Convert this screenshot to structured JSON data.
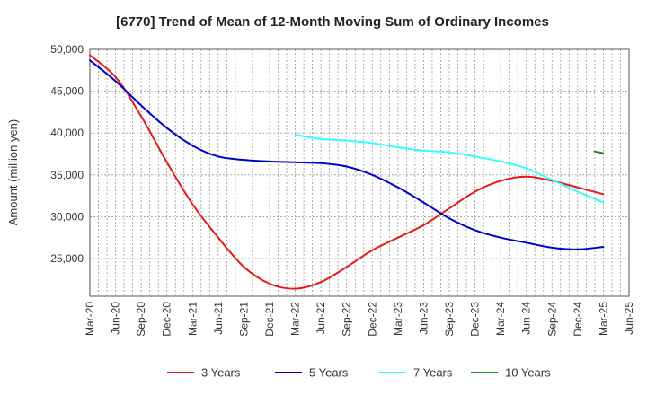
{
  "chart_data": {
    "type": "line",
    "title": "[6770]  Trend of Mean of 12-Month Moving Sum of Ordinary Incomes",
    "xlabel": "",
    "ylabel": "Amount (million yen)",
    "ylim": [
      20500,
      50000
    ],
    "yticks": [
      25000,
      30000,
      35000,
      40000,
      45000,
      50000
    ],
    "ytick_labels": [
      "25,000",
      "30,000",
      "35,000",
      "40,000",
      "45,000",
      "50,000"
    ],
    "categories": [
      "Mar-20",
      "Jun-20",
      "Sep-20",
      "Dec-20",
      "Mar-21",
      "Jun-21",
      "Sep-21",
      "Dec-21",
      "Mar-22",
      "Jun-22",
      "Sep-22",
      "Dec-22",
      "Mar-23",
      "Jun-23",
      "Sep-23",
      "Dec-23",
      "Mar-24",
      "Jun-24",
      "Sep-24",
      "Dec-24",
      "Mar-25",
      "Jun-25"
    ],
    "grid": true,
    "legend_position": "bottom",
    "series": [
      {
        "name": "3 Years",
        "color": "#e31a1c",
        "values": [
          49300,
          46700,
          42000,
          36500,
          31500,
          27500,
          24000,
          22000,
          21400,
          22200,
          24000,
          26000,
          27500,
          29000,
          31000,
          33000,
          34300,
          34800,
          34300,
          33500,
          32700,
          null
        ]
      },
      {
        "name": "5 Years",
        "color": "#0000cc",
        "values": [
          48700,
          46200,
          43300,
          40600,
          38500,
          37200,
          36800,
          36600,
          36500,
          36400,
          36000,
          35000,
          33500,
          31700,
          29800,
          28400,
          27500,
          26900,
          26300,
          26100,
          26400,
          null
        ]
      },
      {
        "name": "7 Years",
        "color": "#33ffff",
        "values": [
          null,
          null,
          null,
          null,
          null,
          null,
          null,
          null,
          39800,
          39300,
          39100,
          38800,
          38300,
          37900,
          37700,
          37200,
          36600,
          35800,
          34400,
          33000,
          31700,
          null
        ]
      },
      {
        "name": "10 Years",
        "color": "#228b22",
        "values": [
          null,
          null,
          null,
          null,
          null,
          null,
          null,
          null,
          null,
          null,
          null,
          null,
          null,
          null,
          null,
          null,
          null,
          null,
          null,
          null,
          37600,
          null
        ],
        "start": 37800
      }
    ]
  }
}
